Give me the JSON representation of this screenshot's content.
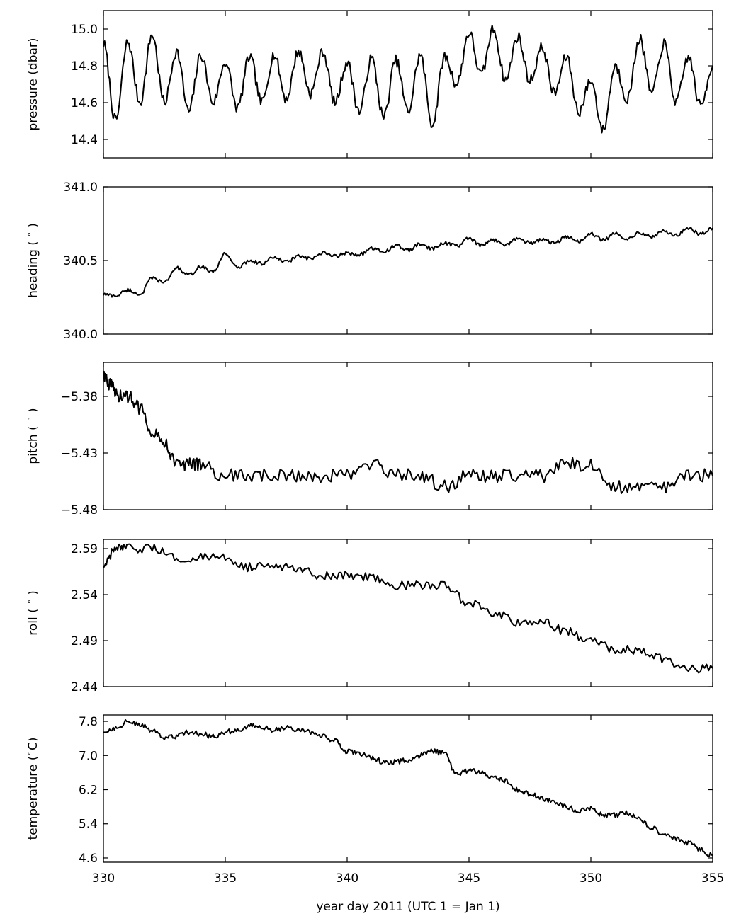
{
  "chart_data": {
    "type": "line",
    "xlabel": "year day 2011 (UTC 1 = Jan 1)",
    "xlim": [
      330,
      355
    ],
    "xticks": [
      330,
      335,
      340,
      345,
      350,
      355
    ],
    "xtick_labels": [
      "330",
      "335",
      "340",
      "345",
      "350",
      "355"
    ],
    "grid": false,
    "legend": "none",
    "panels": [
      {
        "id": "pressure",
        "ylabel": "pressure (dbar)",
        "ylim": [
          14.3,
          15.1
        ],
        "yticks": [
          14.4,
          14.6,
          14.8,
          15.0
        ],
        "ytick_labels": [
          "14.4",
          "14.6",
          "14.8",
          "15.0"
        ],
        "x": [
          330.0,
          330.5,
          331.0,
          331.5,
          332.0,
          332.5,
          333.0,
          333.5,
          334.0,
          334.5,
          335.0,
          335.5,
          336.0,
          336.5,
          337.0,
          337.5,
          338.0,
          338.5,
          339.0,
          339.5,
          340.0,
          340.5,
          341.0,
          341.5,
          342.0,
          342.5,
          343.0,
          343.5,
          344.0,
          344.5,
          345.0,
          345.5,
          346.0,
          346.5,
          347.0,
          347.5,
          348.0,
          348.5,
          349.0,
          349.5,
          350.0,
          350.5,
          351.0,
          351.5,
          352.0,
          352.5,
          353.0,
          353.5,
          354.0,
          354.5,
          355.0
        ],
        "y": [
          14.92,
          14.5,
          14.93,
          14.6,
          14.97,
          14.6,
          14.88,
          14.55,
          14.86,
          14.6,
          14.82,
          14.57,
          14.85,
          14.6,
          14.86,
          14.62,
          14.88,
          14.65,
          14.88,
          14.6,
          14.82,
          14.55,
          14.84,
          14.52,
          14.83,
          14.55,
          14.86,
          14.48,
          14.85,
          14.7,
          14.98,
          14.75,
          15.0,
          14.72,
          14.96,
          14.72,
          14.9,
          14.65,
          14.85,
          14.55,
          14.72,
          14.45,
          14.8,
          14.62,
          14.95,
          14.65,
          14.92,
          14.6,
          14.85,
          14.58,
          14.8
        ]
      },
      {
        "id": "heading",
        "ylabel": "heading ( $^\\circ$ )",
        "ylim": [
          340.0,
          341.0
        ],
        "yticks": [
          340.0,
          340.5,
          341.0
        ],
        "ytick_labels": [
          "340.0",
          "340.5",
          "341.0"
        ],
        "x": [
          330.0,
          330.5,
          331.0,
          331.5,
          332.0,
          332.5,
          333.0,
          333.5,
          334.0,
          334.5,
          335.0,
          335.5,
          336.0,
          336.5,
          337.0,
          337.5,
          338.0,
          338.5,
          339.0,
          339.5,
          340.0,
          340.5,
          341.0,
          341.5,
          342.0,
          342.5,
          343.0,
          343.5,
          344.0,
          344.5,
          345.0,
          345.5,
          346.0,
          346.5,
          347.0,
          347.5,
          348.0,
          348.5,
          349.0,
          349.5,
          350.0,
          350.5,
          351.0,
          351.5,
          352.0,
          352.5,
          353.0,
          353.5,
          354.0,
          354.5,
          355.0
        ],
        "y": [
          340.27,
          340.26,
          340.3,
          340.27,
          340.38,
          340.35,
          340.45,
          340.4,
          340.46,
          340.42,
          340.55,
          340.45,
          340.5,
          340.48,
          340.52,
          340.49,
          340.53,
          340.51,
          340.55,
          340.53,
          340.55,
          340.54,
          340.58,
          340.56,
          340.6,
          340.57,
          340.61,
          340.58,
          340.62,
          340.6,
          340.65,
          340.6,
          340.64,
          340.61,
          340.65,
          340.62,
          340.64,
          340.62,
          340.66,
          340.63,
          340.68,
          340.64,
          340.68,
          340.65,
          340.69,
          340.66,
          340.7,
          340.67,
          340.72,
          340.68,
          340.72
        ]
      },
      {
        "id": "pitch",
        "ylabel": "pitch ( $^\\circ$ )",
        "ylim": [
          -5.48,
          -5.35
        ],
        "yticks": [
          -5.48,
          -5.43,
          -5.38
        ],
        "ytick_labels": [
          "−5.48",
          "−5.43",
          "−5.38"
        ],
        "x": [
          330.0,
          330.3,
          330.6,
          331.0,
          331.5,
          332.0,
          332.5,
          333.0,
          333.5,
          334.0,
          335.0,
          336.0,
          337.0,
          338.0,
          339.0,
          340.0,
          341.0,
          342.0,
          343.0,
          344.0,
          345.0,
          346.0,
          347.0,
          348.0,
          349.0,
          350.0,
          351.0,
          352.0,
          353.0,
          354.0,
          355.0
        ],
        "y": [
          -5.36,
          -5.37,
          -5.38,
          -5.38,
          -5.39,
          -5.41,
          -5.42,
          -5.44,
          -5.44,
          -5.44,
          -5.45,
          -5.45,
          -5.45,
          -5.45,
          -5.45,
          -5.45,
          -5.44,
          -5.45,
          -5.45,
          -5.46,
          -5.45,
          -5.45,
          -5.45,
          -5.45,
          -5.44,
          -5.44,
          -5.46,
          -5.46,
          -5.46,
          -5.45,
          -5.45
        ]
      },
      {
        "id": "roll",
        "ylabel": "roll ( $^\\circ$ )",
        "ylim": [
          2.44,
          2.6
        ],
        "yticks": [
          2.44,
          2.49,
          2.54,
          2.59
        ],
        "ytick_labels": [
          "2.44",
          "2.49",
          "2.54",
          "2.59"
        ],
        "x": [
          330.0,
          330.5,
          331.0,
          332.0,
          333.0,
          334.0,
          335.0,
          336.0,
          337.0,
          338.0,
          339.0,
          340.0,
          341.0,
          342.0,
          343.0,
          344.0,
          345.0,
          346.0,
          347.0,
          348.0,
          349.0,
          350.0,
          351.0,
          352.0,
          353.0,
          354.0,
          355.0
        ],
        "y": [
          2.57,
          2.59,
          2.59,
          2.59,
          2.58,
          2.58,
          2.58,
          2.57,
          2.57,
          2.57,
          2.56,
          2.56,
          2.56,
          2.55,
          2.55,
          2.55,
          2.53,
          2.52,
          2.51,
          2.51,
          2.5,
          2.49,
          2.48,
          2.48,
          2.47,
          2.46,
          2.46
        ]
      },
      {
        "id": "temperature",
        "ylabel": "temperature ($^\\circ$C)",
        "ylim": [
          4.5,
          7.95
        ],
        "yticks": [
          4.6,
          5.4,
          6.2,
          7.0,
          7.8
        ],
        "ytick_labels": [
          "4.6",
          "5.4",
          "6.2",
          "7.0",
          "7.8"
        ],
        "x": [
          330.0,
          330.5,
          331.0,
          331.5,
          332.0,
          332.5,
          333.0,
          333.5,
          334.0,
          334.5,
          335.0,
          335.5,
          336.0,
          336.5,
          337.0,
          337.5,
          338.0,
          338.5,
          339.0,
          339.5,
          340.0,
          340.5,
          341.0,
          341.5,
          342.0,
          342.5,
          343.0,
          343.5,
          344.0,
          344.5,
          345.0,
          345.5,
          346.0,
          346.5,
          347.0,
          347.5,
          348.0,
          348.5,
          349.0,
          349.5,
          350.0,
          350.5,
          351.0,
          351.5,
          352.0,
          352.5,
          353.0,
          353.5,
          354.0,
          354.5,
          355.0
        ],
        "y": [
          7.55,
          7.65,
          7.8,
          7.7,
          7.6,
          7.4,
          7.45,
          7.55,
          7.5,
          7.45,
          7.55,
          7.6,
          7.7,
          7.65,
          7.6,
          7.65,
          7.6,
          7.55,
          7.45,
          7.35,
          7.1,
          7.05,
          6.95,
          6.85,
          6.85,
          6.9,
          7.0,
          7.1,
          7.05,
          6.55,
          6.65,
          6.6,
          6.5,
          6.4,
          6.2,
          6.1,
          6.0,
          5.9,
          5.8,
          5.7,
          5.75,
          5.6,
          5.6,
          5.65,
          5.5,
          5.3,
          5.15,
          5.05,
          4.95,
          4.8,
          4.65
        ]
      }
    ]
  }
}
